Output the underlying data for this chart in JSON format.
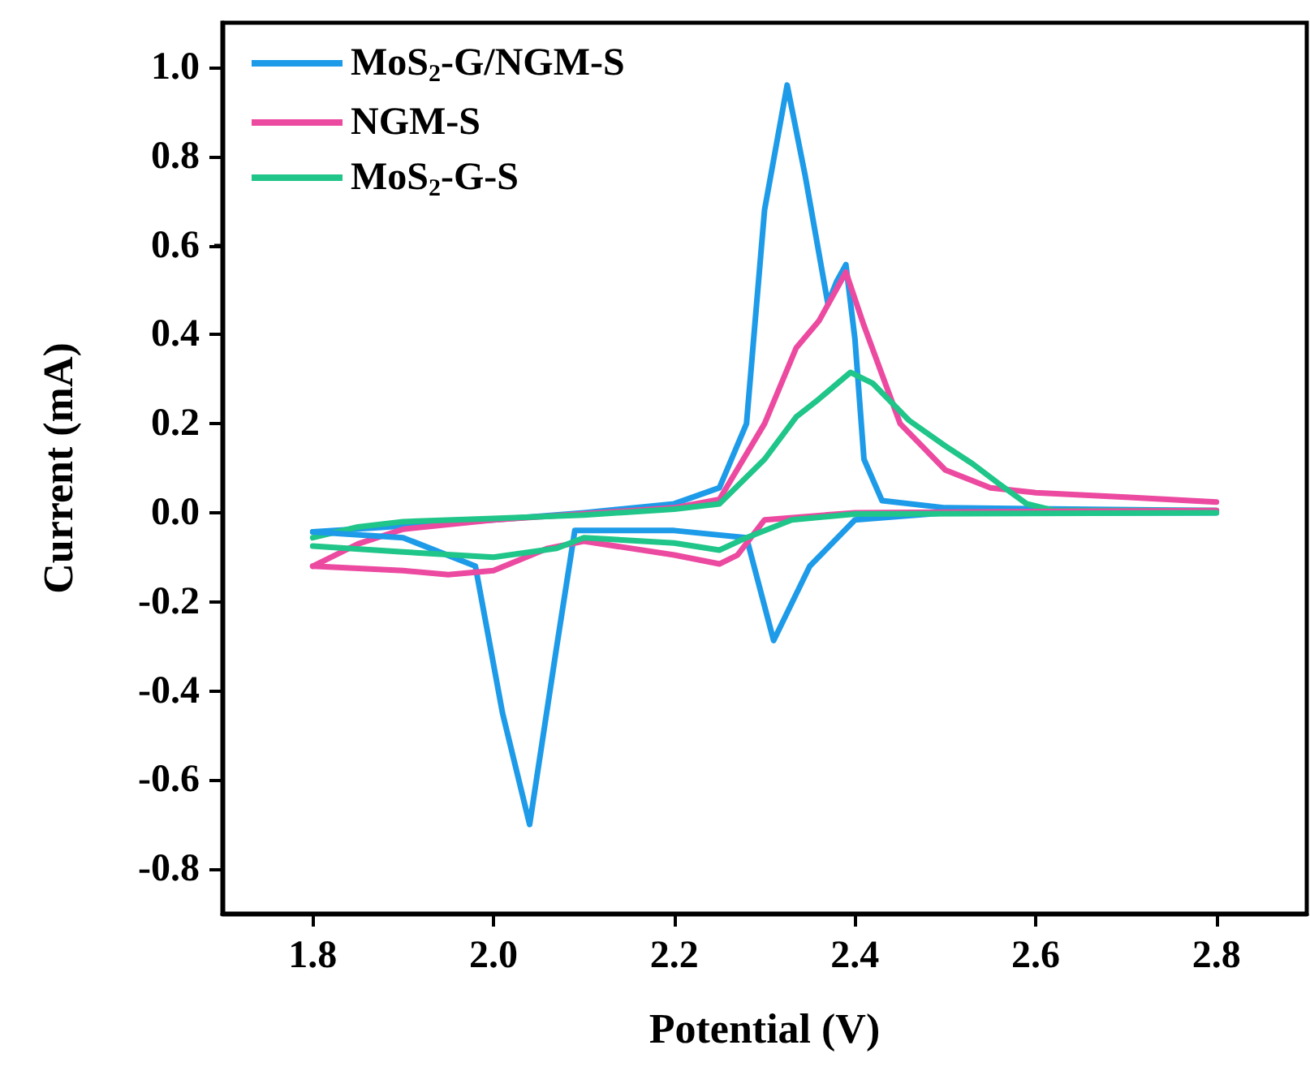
{
  "chart_data": {
    "type": "line",
    "xlabel": "Potential (V)",
    "ylabel": "Current (mA)",
    "xlim": [
      1.7,
      2.9
    ],
    "xticks": [
      1.8,
      {
        "value": 2,
        "label": "2.0"
      },
      2.2,
      2.4,
      2.6,
      2.8
    ],
    "ylim": [
      -0.9,
      1.1
    ],
    "yticks": [
      -0.8,
      -0.6,
      -0.4,
      -0.2,
      {
        "value": 0,
        "label": "0.0"
      },
      0.2,
      0.4,
      0.6,
      0.8,
      {
        "value": 1,
        "label": "1.0"
      }
    ],
    "grid": false,
    "legend": "top left",
    "series": [
      {
        "name": "MoS$_{2}$-G/NGM-S",
        "color": "#1e9be8",
        "x": [
          1.8,
          1.9,
          2.0,
          2.1,
          2.2,
          2.25,
          2.28,
          2.3,
          2.325,
          2.345,
          2.37,
          2.38,
          2.39,
          2.4,
          2.41,
          2.43,
          2.5,
          2.8
        ],
        "values": [
          -0.043,
          -0.03,
          -0.016,
          0.0,
          0.02,
          0.056,
          0.2,
          0.68,
          0.96,
          0.756,
          0.47,
          0.52,
          0.557,
          0.39,
          0.12,
          0.027,
          0.011,
          0.005
        ]
      },
      {
        "name": "NGM-S",
        "color": "#ec4aa0",
        "x": [
          1.8,
          1.85,
          1.9,
          2.0,
          2.2,
          2.25,
          2.3,
          2.335,
          2.36,
          2.39,
          2.41,
          2.45,
          2.5,
          2.55,
          2.6,
          2.7,
          2.8
        ],
        "values": [
          -0.12,
          -0.07,
          -0.037,
          -0.016,
          0.011,
          0.03,
          0.2,
          0.37,
          0.43,
          0.54,
          0.42,
          0.2,
          0.096,
          0.056,
          0.045,
          0.035,
          0.024
        ]
      },
      {
        "name": "MoS$_{2}$-G-S",
        "color": "#1fc589",
        "x": [
          1.8,
          1.85,
          1.9,
          2.0,
          2.1,
          2.2,
          2.25,
          2.3,
          2.335,
          2.36,
          2.395,
          2.42,
          2.46,
          2.5,
          2.53,
          2.56,
          2.59,
          2.62,
          2.8
        ],
        "values": [
          -0.056,
          -0.032,
          -0.02,
          -0.013,
          -0.005,
          0.008,
          0.02,
          0.12,
          0.215,
          0.255,
          0.315,
          0.29,
          0.207,
          0.15,
          0.11,
          0.064,
          0.02,
          0.005,
          0.005
        ]
      },
      {
        "color": "#1e9be8",
        "x": [
          1.8,
          1.9,
          1.98,
          2.01,
          2.04,
          2.07,
          2.09,
          2.2,
          2.28,
          2.31,
          2.35,
          2.4,
          2.5,
          2.8
        ],
        "values": [
          -0.043,
          -0.056,
          -0.12,
          -0.45,
          -0.7,
          -0.3,
          -0.04,
          -0.04,
          -0.056,
          -0.287,
          -0.12,
          -0.016,
          0.0,
          0.0
        ]
      },
      {
        "color": "#ec4aa0",
        "x": [
          1.8,
          1.9,
          1.95,
          2.0,
          2.06,
          2.1,
          2.2,
          2.25,
          2.27,
          2.3,
          2.4,
          2.8
        ],
        "values": [
          -0.12,
          -0.13,
          -0.139,
          -0.13,
          -0.08,
          -0.064,
          -0.095,
          -0.115,
          -0.095,
          -0.016,
          0.0,
          0.005
        ]
      },
      {
        "color": "#1fc589",
        "x": [
          1.8,
          1.9,
          2.0,
          2.07,
          2.1,
          2.2,
          2.25,
          2.28,
          2.33,
          2.4,
          2.8
        ],
        "values": [
          -0.075,
          -0.088,
          -0.1,
          -0.08,
          -0.056,
          -0.068,
          -0.084,
          -0.056,
          -0.016,
          -0.003,
          0.0
        ]
      }
    ]
  }
}
